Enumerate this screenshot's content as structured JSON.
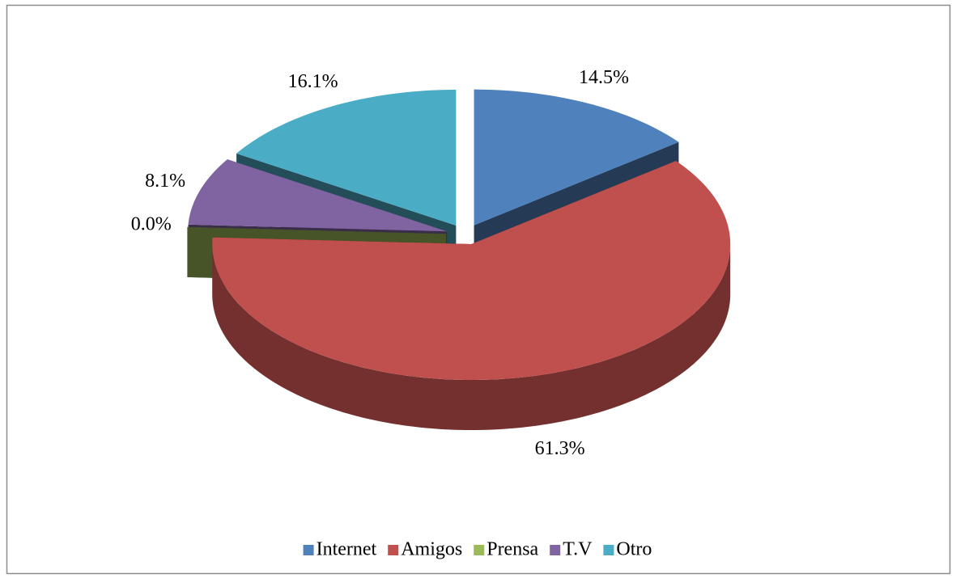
{
  "chart_data": {
    "type": "pie",
    "categories": [
      "Internet",
      "Amigos",
      "Prensa",
      "T.V",
      "Otro"
    ],
    "values": [
      14.5,
      61.3,
      0.0,
      8.1,
      16.1
    ],
    "value_labels": [
      "14.5%",
      "61.3%",
      "0.0%",
      "8.1%",
      "16.1%"
    ],
    "colors": [
      "#4f81bd",
      "#c0504d",
      "#9bbb59",
      "#8064a2",
      "#4bacc6"
    ],
    "legend": "bottom",
    "three_d": true,
    "exploded": true
  }
}
